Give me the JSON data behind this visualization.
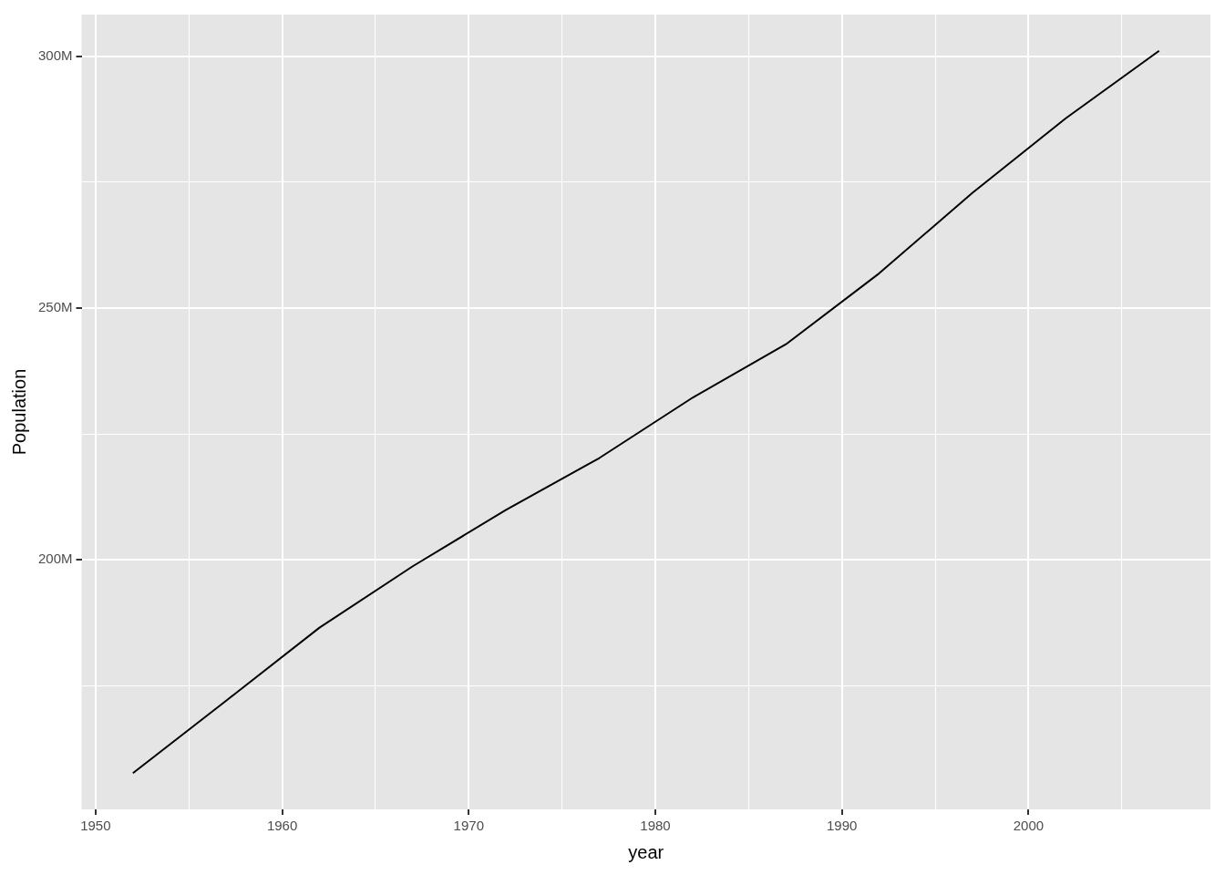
{
  "chart_data": {
    "type": "line",
    "xlabel": "year",
    "ylabel": "Population",
    "x": [
      1952,
      1957,
      1962,
      1967,
      1972,
      1977,
      1982,
      1987,
      1992,
      1997,
      2002,
      2007
    ],
    "series": [
      {
        "color": "#000000",
        "values": [
          157.6,
          172.0,
          186.5,
          198.7,
          209.9,
          220.2,
          232.2,
          242.8,
          256.9,
          272.9,
          287.7,
          301.1
        ]
      }
    ],
    "xlim": [
      1949.25,
      2009.75
    ],
    "xticks": [
      1950,
      {
        "value": 1955,
        "label": null
      },
      1960,
      {
        "value": 1965,
        "label": null
      },
      1970,
      {
        "value": 1975,
        "label": null
      },
      1980,
      {
        "value": 1985,
        "label": null
      },
      1990,
      {
        "value": 1995,
        "label": null
      },
      2000,
      {
        "value": 2005,
        "label": null
      }
    ],
    "ylim": [
      150.4,
      308.3
    ],
    "yticks": [
      {
        "value": 175,
        "label": null
      },
      {
        "value": 200,
        "label": "200M"
      },
      {
        "value": 225,
        "label": null
      },
      {
        "value": 250,
        "label": "250M"
      },
      {
        "value": 275,
        "label": null
      },
      {
        "value": 300,
        "label": "300M"
      }
    ],
    "grid": true,
    "legend": false,
    "marker": "none",
    "line_style": "solid"
  }
}
